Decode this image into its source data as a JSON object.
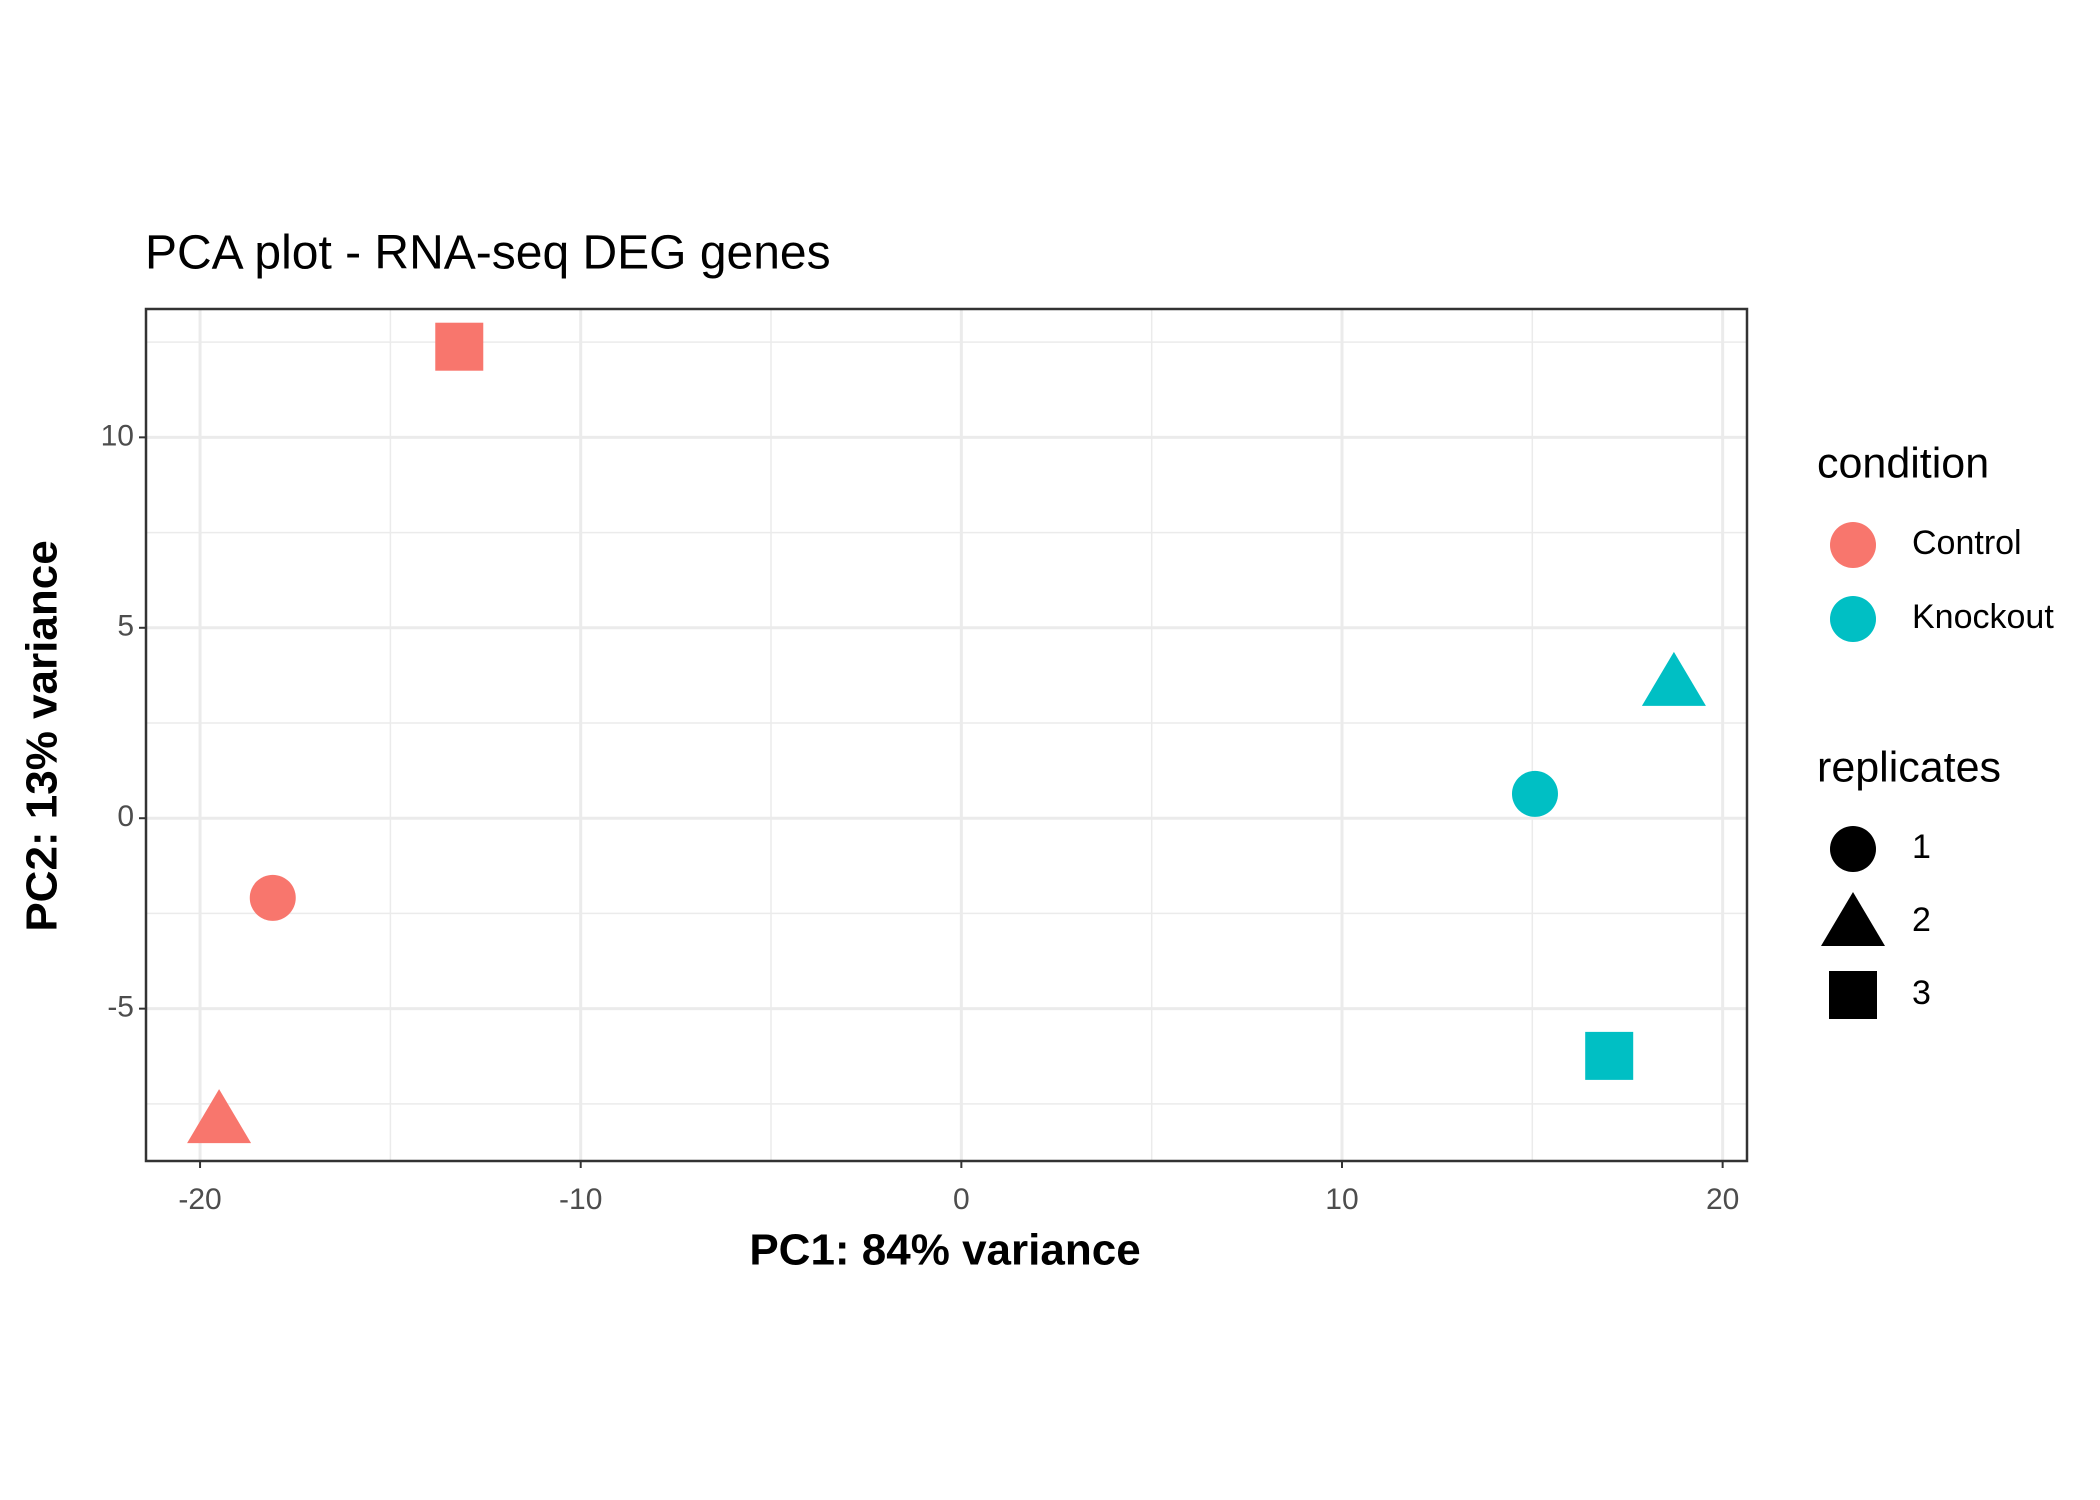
{
  "chart_data": {
    "type": "scatter",
    "title": "PCA plot - RNA-seq DEG genes",
    "x_label": "PC1: 84% variance",
    "y_label": "PC2: 13% variance",
    "xlim": [
      -21.42,
      20.64
    ],
    "ylim": [
      -9.0,
      13.37
    ],
    "xticks": [
      -20,
      -10,
      0,
      10,
      20
    ],
    "yticks": [
      -5,
      0,
      5,
      10
    ],
    "minor_xticks": [
      -15,
      -5,
      5,
      15
    ],
    "minor_yticks": [
      -7.5,
      -2.5,
      2.5,
      7.5,
      12.5
    ],
    "grid": true,
    "color_legend": {
      "title": "condition"
    },
    "shape_legend": {
      "title": "replicates",
      "labels": [
        "1",
        "2",
        "3"
      ],
      "shapes": [
        "circle",
        "triangle",
        "square"
      ]
    },
    "series": [
      {
        "name": "Control",
        "color": "#f8766d",
        "x": [
          -18.09,
          -19.5,
          -13.19
        ],
        "values": [
          -2.09,
          -7.9,
          12.38
        ]
      },
      {
        "name": "Knockout",
        "color": "#00bfc4",
        "x": [
          15.07,
          18.72,
          17.02
        ],
        "values": [
          0.64,
          3.58,
          -6.24
        ]
      }
    ]
  }
}
